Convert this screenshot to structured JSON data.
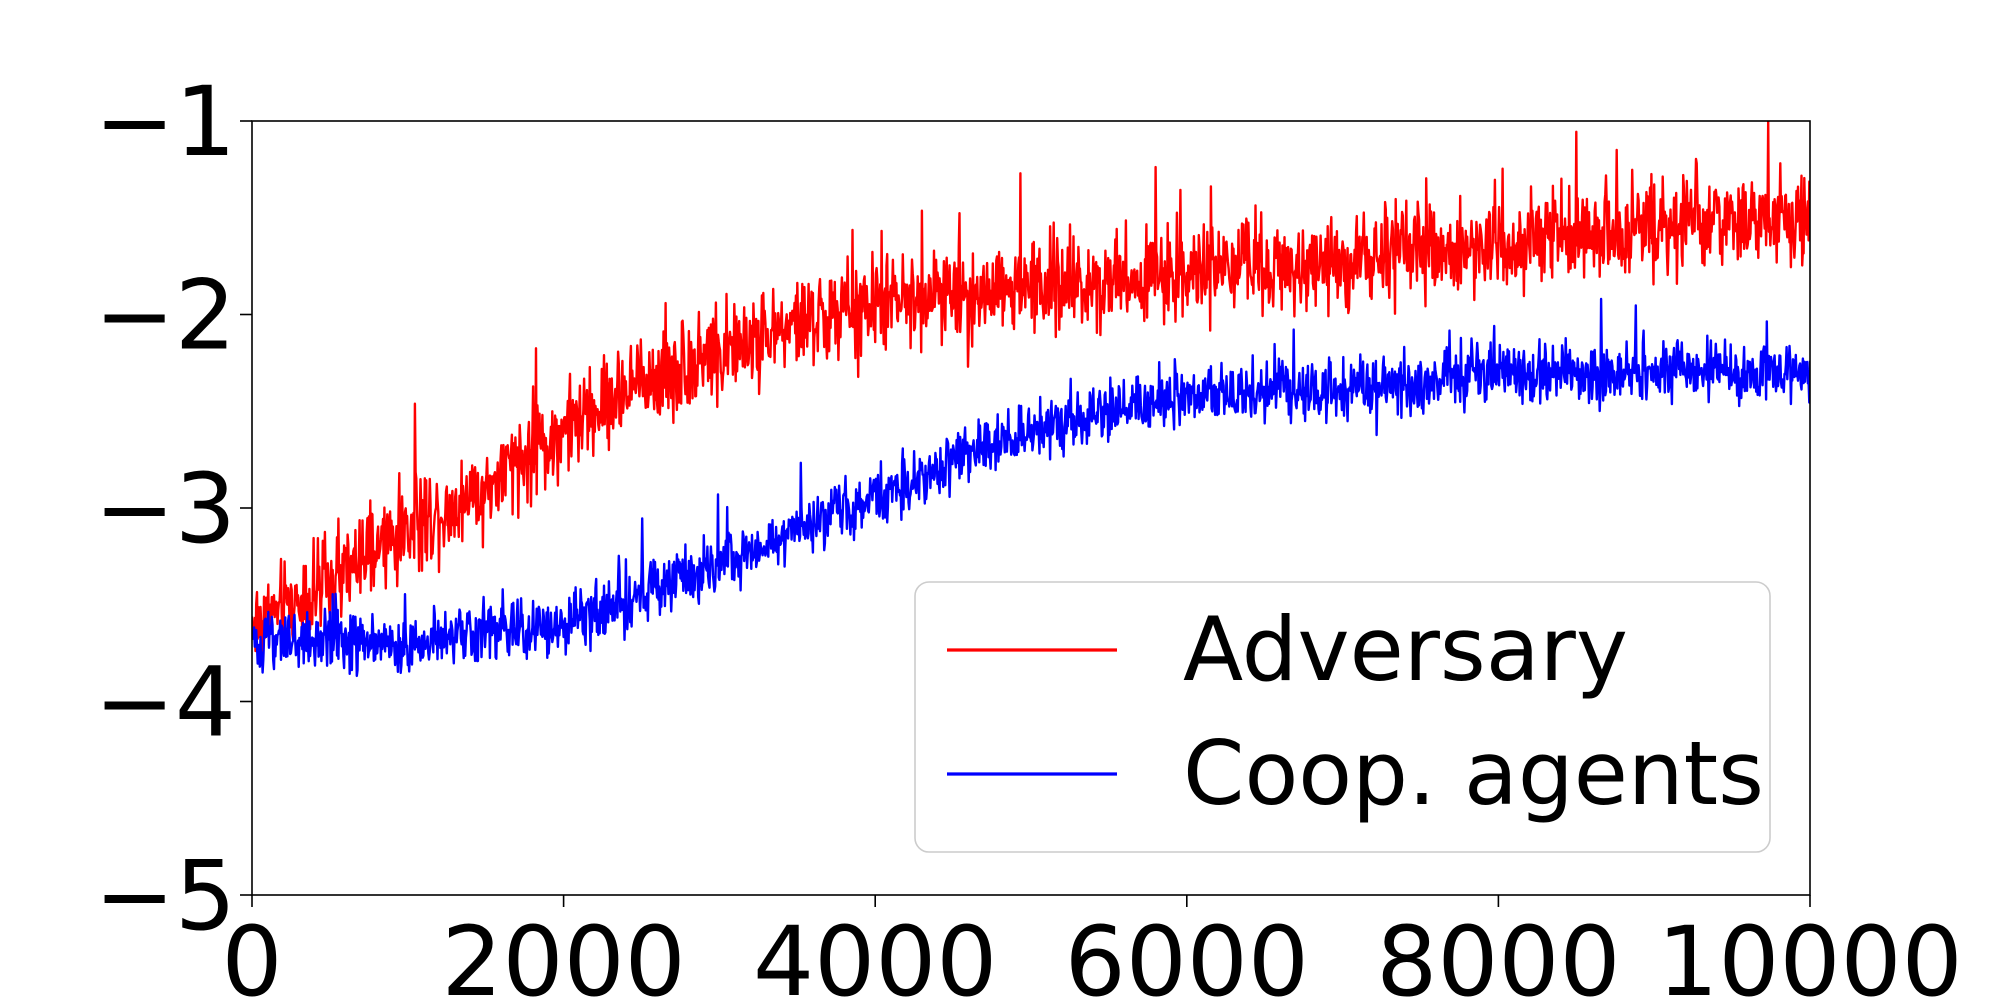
{
  "chart_data": {
    "type": "line",
    "title": "",
    "xlabel": "",
    "ylabel": "",
    "xlim": [
      0,
      10000
    ],
    "ylim": [
      -5,
      -1
    ],
    "xticks": [
      0,
      2000,
      4000,
      6000,
      8000,
      10000
    ],
    "yticks": [
      -5,
      -4,
      -3,
      -2,
      -1
    ],
    "xtick_labels": [
      "0",
      "2000",
      "4000",
      "6000",
      "8000",
      "10000"
    ],
    "ytick_labels": [
      "−5",
      "−4",
      "−3",
      "−2",
      "−1"
    ],
    "grid": false,
    "legend_position": "lower-right",
    "series": [
      {
        "name": "Adversary",
        "color": "#ff0000",
        "trend": {
          "x": [
            0,
            500,
            1000,
            1500,
            2000,
            2500,
            3000,
            3500,
            4000,
            4500,
            5000,
            5500,
            6000,
            6500,
            7000,
            7500,
            8000,
            8500,
            9000,
            9500,
            10000
          ],
          "y": [
            -3.6,
            -3.4,
            -3.1,
            -2.9,
            -2.6,
            -2.35,
            -2.2,
            -2.05,
            -1.95,
            -1.9,
            -1.85,
            -1.82,
            -1.78,
            -1.75,
            -1.72,
            -1.68,
            -1.62,
            -1.58,
            -1.55,
            -1.52,
            -1.5
          ]
        },
        "noise_amplitude": 0.35
      },
      {
        "name": "Coop. agents",
        "color": "#0000ff",
        "trend": {
          "x": [
            0,
            500,
            1000,
            1500,
            2000,
            2500,
            3000,
            3500,
            4000,
            4500,
            5000,
            5500,
            6000,
            6500,
            7000,
            7500,
            8000,
            8500,
            9000,
            9500,
            10000
          ],
          "y": [
            -3.7,
            -3.7,
            -3.7,
            -3.65,
            -3.6,
            -3.45,
            -3.3,
            -3.1,
            -2.95,
            -2.75,
            -2.6,
            -2.5,
            -2.42,
            -2.4,
            -2.38,
            -2.35,
            -2.3,
            -2.3,
            -2.3,
            -2.3,
            -2.3
          ]
        },
        "noise_amplitude": 0.22
      }
    ]
  }
}
